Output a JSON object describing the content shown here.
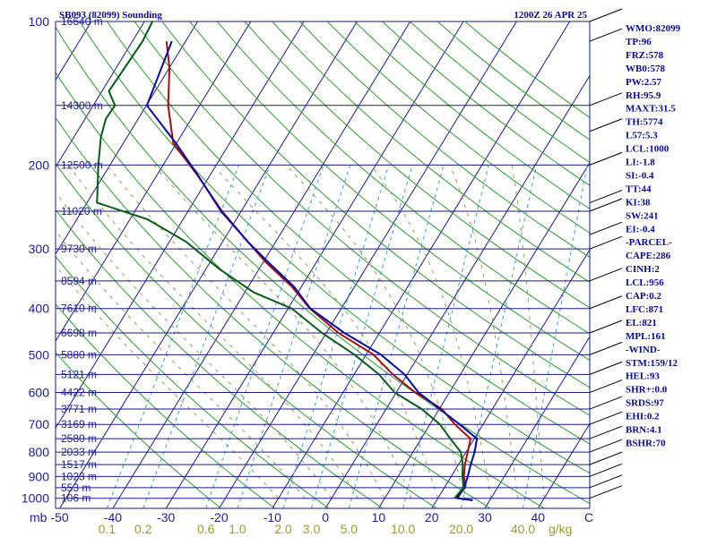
{
  "header": {
    "title": "SB093 (82099) Sounding",
    "time": "1200Z 26 APR 25"
  },
  "chart_data": {
    "type": "skew-t",
    "x_unit_label": "C",
    "y_unit_label": "mb",
    "mixing_ratio_unit": "g/kg",
    "pressure_ticks": [
      "100",
      "200",
      "300",
      "400",
      "500",
      "600",
      "700",
      "800",
      "900",
      "1000"
    ],
    "temperature_ticks": [
      "-50",
      "-40",
      "-30",
      "-20",
      "-10",
      "0",
      "10",
      "20",
      "30",
      "40"
    ],
    "mixing_ratio_ticks": [
      "0.1",
      "0.2",
      "0.6",
      "1.0",
      "2.0",
      "3.0",
      "5.0",
      "10.0",
      "20.0",
      "40.0"
    ],
    "height_levels": [
      {
        "p": 100,
        "label": "16640 m"
      },
      {
        "p": 150,
        "label": "14300 m"
      },
      {
        "p": 200,
        "label": "12500 m"
      },
      {
        "p": 250,
        "label": "11020 m"
      },
      {
        "p": 300,
        "label": "9730 m"
      },
      {
        "p": 350,
        "label": "8594 m"
      },
      {
        "p": 400,
        "label": "7610 m"
      },
      {
        "p": 450,
        "label": "6698 m"
      },
      {
        "p": 500,
        "label": "5880 m"
      },
      {
        "p": 550,
        "label": "5121 m"
      },
      {
        "p": 600,
        "label": "4422 m"
      },
      {
        "p": 650,
        "label": "3771 m"
      },
      {
        "p": 700,
        "label": "3169 m"
      },
      {
        "p": 750,
        "label": "2580 m"
      },
      {
        "p": 800,
        "label": "2033 m"
      },
      {
        "p": 850,
        "label": "1517 m"
      },
      {
        "p": 900,
        "label": "1023 m"
      },
      {
        "p": 950,
        "label": "553 m"
      },
      {
        "p": 1000,
        "label": "106 m"
      }
    ],
    "series": [
      {
        "name": "",
        "color": "#a01010",
        "points": [
          [
            -83.6,
            110
          ],
          [
            -80,
            125
          ],
          [
            -75.9,
            150
          ],
          [
            -70.6,
            180
          ],
          [
            -62.4,
            210
          ],
          [
            -53.6,
            250
          ],
          [
            -45.2,
            290
          ],
          [
            -39.5,
            320
          ],
          [
            -31.8,
            360
          ],
          [
            -25.9,
            400
          ],
          [
            -17.7,
            450
          ],
          [
            -8.6,
            500
          ],
          [
            -2.7,
            550
          ],
          [
            3.6,
            600
          ],
          [
            10.5,
            650
          ],
          [
            14.7,
            700
          ],
          [
            19.3,
            750
          ],
          [
            20.3,
            800
          ],
          [
            21.2,
            850
          ],
          [
            22.4,
            900
          ],
          [
            23.9,
            950
          ],
          [
            23.3,
            1000
          ]
        ]
      },
      {
        "name": "",
        "color": "#0a0a9a",
        "points": [
          [
            -82.6,
            110
          ],
          [
            -79.9,
            150
          ],
          [
            -70.1,
            180
          ],
          [
            -62.3,
            210
          ],
          [
            -53.8,
            250
          ],
          [
            -45.2,
            290
          ],
          [
            -39,
            320
          ],
          [
            -31.4,
            360
          ],
          [
            -25.8,
            400
          ],
          [
            -16.6,
            450
          ],
          [
            -7.2,
            500
          ],
          [
            -0.5,
            550
          ],
          [
            4.2,
            600
          ],
          [
            10.1,
            650
          ],
          [
            15.6,
            700
          ],
          [
            20.5,
            750
          ],
          [
            21.6,
            800
          ],
          [
            22.3,
            850
          ],
          [
            23.1,
            900
          ],
          [
            23.7,
            950
          ],
          [
            23.7,
            1000
          ],
          [
            26.8,
            1010
          ]
        ]
      },
      {
        "name": "",
        "color": "#0a5a1a",
        "points": [
          [
            -88.5,
            100
          ],
          [
            -88.1,
            110
          ],
          [
            -88.7,
            140
          ],
          [
            -85.9,
            150
          ],
          [
            -86.1,
            160
          ],
          [
            -84.9,
            175
          ],
          [
            -82.2,
            200
          ],
          [
            -78.1,
            240
          ],
          [
            -66.7,
            260
          ],
          [
            -56.8,
            290
          ],
          [
            -47.6,
            330
          ],
          [
            -38.3,
            370
          ],
          [
            -29.3,
            400
          ],
          [
            -20.8,
            450
          ],
          [
            -12.2,
            500
          ],
          [
            -5.3,
            550
          ],
          [
            -0.3,
            600
          ],
          [
            6.7,
            650
          ],
          [
            11.9,
            700
          ],
          [
            15.5,
            750
          ],
          [
            19,
            800
          ],
          [
            20.8,
            850
          ],
          [
            22.1,
            900
          ],
          [
            23.6,
            950
          ],
          [
            23.1,
            1000
          ]
        ]
      }
    ],
    "indices": [
      "WMO:82099",
      "TP:96",
      "FRZ:578",
      "WB0:578",
      "PW:2.57",
      "RH:95.9",
      "MAXT:31.5",
      "TH:5774",
      "L57:5.3",
      "LCL:1000",
      "LI:-1.8",
      "SI:-0.4",
      "TT:44",
      "KI:38",
      "SW:241",
      "EI:-0.4",
      "-PARCEL-",
      "CAPE:286",
      "CINH:2",
      "LCL:956",
      "CAP:0.2",
      "LFC:871",
      "EL:821",
      "MPL:161",
      "-WIND-",
      "STM:159/12",
      "HEL:93",
      "SHR+:0.0",
      "SRDS:97",
      "EHI:0.2",
      "BRN:4.1",
      "BSHR:70"
    ]
  }
}
